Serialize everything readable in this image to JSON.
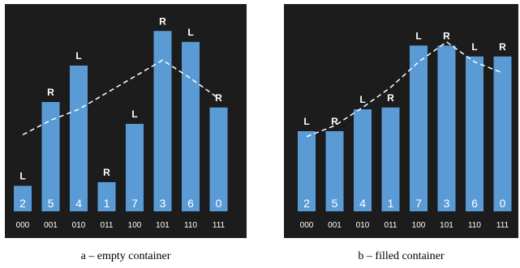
{
  "colors": {
    "bar": "#5b9bd5",
    "background": "#1c1c1c",
    "text": "#ffffff",
    "dash": "#ffffff"
  },
  "panels": [
    {
      "id": "a",
      "caption": "a – empty container",
      "bars": [
        {
          "index": "000",
          "value": "2",
          "side": "L",
          "height": 0.14
        },
        {
          "index": "001",
          "value": "5",
          "side": "R",
          "height": 0.6
        },
        {
          "index": "010",
          "value": "4",
          "side": "L",
          "height": 0.8
        },
        {
          "index": "011",
          "value": "1",
          "side": "R",
          "height": 0.16
        },
        {
          "index": "100",
          "value": "7",
          "side": "L",
          "height": 0.48
        },
        {
          "index": "101",
          "value": "3",
          "side": "R",
          "height": 0.99
        },
        {
          "index": "110",
          "value": "6",
          "side": "L",
          "height": 0.93
        },
        {
          "index": "111",
          "value": "0",
          "side": "R",
          "height": 0.57
        }
      ],
      "trend": [
        0.42,
        0.5,
        0.56,
        0.65,
        0.74,
        0.83,
        0.73,
        0.62
      ]
    },
    {
      "id": "b",
      "caption": "b – filled container",
      "bars": [
        {
          "index": "000",
          "value": "2",
          "side": "L",
          "height": 0.44
        },
        {
          "index": "001",
          "value": "5",
          "side": "R",
          "height": 0.44
        },
        {
          "index": "010",
          "value": "4",
          "side": "L",
          "height": 0.56
        },
        {
          "index": "011",
          "value": "1",
          "side": "R",
          "height": 0.57
        },
        {
          "index": "100",
          "value": "7",
          "side": "L",
          "height": 0.91
        },
        {
          "index": "101",
          "value": "3",
          "side": "R",
          "height": 0.91
        },
        {
          "index": "110",
          "value": "6",
          "side": "L",
          "height": 0.85
        },
        {
          "index": "111",
          "value": "0",
          "side": "R",
          "height": 0.85
        }
      ],
      "trend": [
        0.41,
        0.47,
        0.57,
        0.68,
        0.82,
        0.93,
        0.82,
        0.76
      ]
    }
  ]
}
